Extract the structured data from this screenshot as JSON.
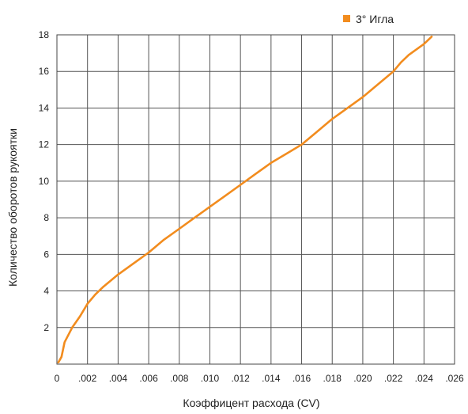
{
  "chart_data": {
    "type": "line",
    "title": "",
    "xlabel": "Коэффицент расхода (CV)",
    "ylabel": "Количество оборотов рукоятки",
    "xlim": [
      0,
      0.026
    ],
    "ylim": [
      0,
      18
    ],
    "grid": true,
    "x_ticks": [
      0,
      0.002,
      0.004,
      0.006,
      0.008,
      0.01,
      0.012,
      0.014,
      0.016,
      0.018,
      0.02,
      0.022,
      0.024,
      0.026
    ],
    "x_tick_labels": [
      "0",
      ".002",
      ".004",
      ".006",
      ".008",
      ".010",
      ".012",
      ".014",
      ".016",
      ".018",
      ".020",
      ".022",
      ".024",
      ".026"
    ],
    "y_ticks": [
      2,
      4,
      6,
      8,
      10,
      12,
      14,
      16,
      18
    ],
    "y_tick_labels": [
      "2",
      "4",
      "6",
      "8",
      "10",
      "12",
      "14",
      "16",
      "18"
    ],
    "legend": {
      "placement": "top-right"
    },
    "series": [
      {
        "name": "3° Игла",
        "color": "#f28c1e",
        "x": [
          0.0001,
          0.0003,
          0.0005,
          0.001,
          0.0015,
          0.002,
          0.0025,
          0.003,
          0.004,
          0.005,
          0.006,
          0.007,
          0.008,
          0.009,
          0.01,
          0.011,
          0.012,
          0.013,
          0.014,
          0.015,
          0.016,
          0.017,
          0.018,
          0.019,
          0.02,
          0.021,
          0.022,
          0.0225,
          0.023,
          0.024,
          0.0245
        ],
        "y": [
          0.1,
          0.4,
          1.2,
          2.0,
          2.6,
          3.3,
          3.8,
          4.2,
          4.9,
          5.5,
          6.1,
          6.8,
          7.4,
          8.0,
          8.6,
          9.2,
          9.8,
          10.4,
          11.0,
          11.5,
          12.0,
          12.7,
          13.4,
          14.0,
          14.6,
          15.3,
          16.0,
          16.5,
          16.9,
          17.5,
          17.9
        ]
      }
    ]
  }
}
